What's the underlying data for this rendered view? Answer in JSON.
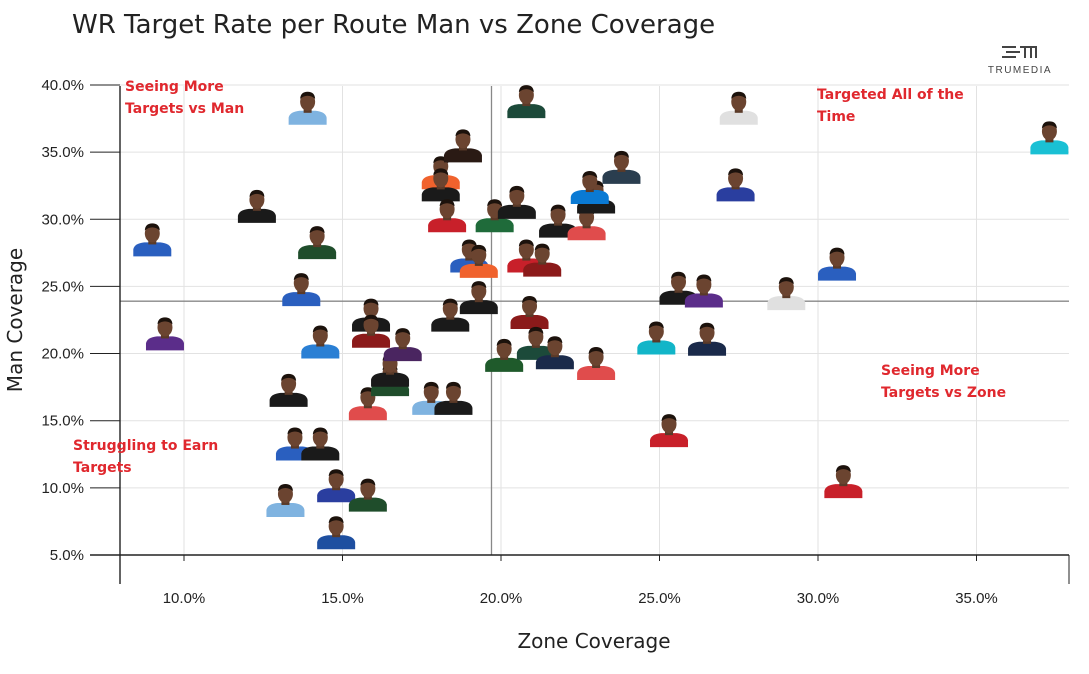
{
  "title": "WR Target Rate per Route Man vs Zone Coverage",
  "brand": "TRUMEDIA",
  "colors": {
    "annotation": "#e0282e",
    "grid": "#e2e2e2",
    "axis": "#222222",
    "reference": "#888888"
  },
  "quadrant_labels": {
    "top_left": [
      "Seeing More",
      "Targets vs Man"
    ],
    "top_right": [
      "Targeted All of the",
      "Time"
    ],
    "bottom_right": [
      "Seeing More",
      "Targets vs Zone"
    ],
    "bottom_left": [
      "Struggling to Earn",
      "Targets"
    ]
  },
  "chart_data": {
    "type": "scatter",
    "title": "WR Target Rate per Route Man vs Zone Coverage",
    "xlabel": "Zone Coverage",
    "ylabel": "Man Coverage",
    "xlim": [
      8.0,
      38.0
    ],
    "ylim": [
      5.0,
      40.0
    ],
    "xticks": [
      "10.0%",
      "15.0%",
      "20.0%",
      "25.0%",
      "30.0%",
      "35.0%"
    ],
    "xtick_values": [
      10,
      15,
      20,
      25,
      30,
      35
    ],
    "yticks": [
      "5.0%",
      "10.0%",
      "15.0%",
      "20.0%",
      "25.0%",
      "30.0%",
      "35.0%",
      "40.0%"
    ],
    "ytick_values": [
      5,
      10,
      15,
      20,
      25,
      30,
      35,
      40
    ],
    "grid": true,
    "reference_lines": {
      "x": 19.7,
      "y": 23.9
    },
    "marker": "player headshot",
    "points": [
      {
        "x": 9.0,
        "y": 28.2,
        "jersey": "#2a5fbf"
      },
      {
        "x": 9.4,
        "y": 21.2,
        "jersey": "#5b2d8a"
      },
      {
        "x": 12.3,
        "y": 30.7,
        "jersey": "#1a1a1a"
      },
      {
        "x": 13.3,
        "y": 17.0,
        "jersey": "#1a1a1a"
      },
      {
        "x": 13.2,
        "y": 8.8,
        "jersey": "#7fb3e0"
      },
      {
        "x": 13.5,
        "y": 13.0,
        "jersey": "#2a5fbf"
      },
      {
        "x": 13.7,
        "y": 24.5,
        "jersey": "#2a5fbf"
      },
      {
        "x": 13.9,
        "y": 38.0,
        "jersey": "#7fb3e0"
      },
      {
        "x": 14.2,
        "y": 28.0,
        "jersey": "#1f4d2b"
      },
      {
        "x": 14.3,
        "y": 13.0,
        "jersey": "#1a1a1a"
      },
      {
        "x": 14.3,
        "y": 20.6,
        "jersey": "#2a7fd4"
      },
      {
        "x": 14.8,
        "y": 9.9,
        "jersey": "#2a3e9f"
      },
      {
        "x": 14.8,
        "y": 6.4,
        "jersey": "#1e4fa0"
      },
      {
        "x": 15.8,
        "y": 9.2,
        "jersey": "#1f4d2b"
      },
      {
        "x": 15.9,
        "y": 22.6,
        "jersey": "#1a1a1a"
      },
      {
        "x": 15.9,
        "y": 21.4,
        "jersey": "#8b1a1a"
      },
      {
        "x": 15.8,
        "y": 16.0,
        "jersey": "#e04c4c"
      },
      {
        "x": 16.5,
        "y": 17.8,
        "jersey": "#1f4d2b"
      },
      {
        "x": 16.5,
        "y": 18.5,
        "jersey": "#1a1a1a"
      },
      {
        "x": 16.9,
        "y": 20.4,
        "jersey": "#4a2560"
      },
      {
        "x": 17.8,
        "y": 16.4,
        "jersey": "#7fb3e0"
      },
      {
        "x": 18.1,
        "y": 33.2,
        "jersey": "#f0622d"
      },
      {
        "x": 18.1,
        "y": 32.3,
        "jersey": "#1a1a1a"
      },
      {
        "x": 18.3,
        "y": 30.0,
        "jersey": "#c8202a"
      },
      {
        "x": 18.5,
        "y": 16.4,
        "jersey": "#1a1a1a"
      },
      {
        "x": 18.8,
        "y": 35.2,
        "jersey": "#2a1a14"
      },
      {
        "x": 18.4,
        "y": 22.6,
        "jersey": "#1a1a1a"
      },
      {
        "x": 19.3,
        "y": 23.9,
        "jersey": "#1a1a1a"
      },
      {
        "x": 19.0,
        "y": 27.0,
        "jersey": "#2a5fbf"
      },
      {
        "x": 19.3,
        "y": 26.6,
        "jersey": "#f0622d"
      },
      {
        "x": 19.8,
        "y": 30.0,
        "jersey": "#1f6b3a"
      },
      {
        "x": 20.1,
        "y": 19.6,
        "jersey": "#1f5a2b"
      },
      {
        "x": 20.5,
        "y": 31.0,
        "jersey": "#1a1a1a"
      },
      {
        "x": 20.8,
        "y": 38.5,
        "jersey": "#1c4a3a"
      },
      {
        "x": 20.8,
        "y": 27.0,
        "jersey": "#c8202a"
      },
      {
        "x": 20.9,
        "y": 22.8,
        "jersey": "#8b1a1a"
      },
      {
        "x": 21.1,
        "y": 20.5,
        "jersey": "#1c4a3a"
      },
      {
        "x": 21.3,
        "y": 26.7,
        "jersey": "#8b1a1a"
      },
      {
        "x": 21.7,
        "y": 19.8,
        "jersey": "#1a2a4a"
      },
      {
        "x": 21.8,
        "y": 29.6,
        "jersey": "#1a1a1a"
      },
      {
        "x": 22.7,
        "y": 29.4,
        "jersey": "#e04c4c"
      },
      {
        "x": 23.0,
        "y": 31.4,
        "jersey": "#1a1a1a"
      },
      {
        "x": 22.8,
        "y": 32.1,
        "jersey": "#0a7ad4"
      },
      {
        "x": 23.8,
        "y": 33.6,
        "jersey": "#2a3e4f"
      },
      {
        "x": 23.0,
        "y": 19.0,
        "jersey": "#e04c4c"
      },
      {
        "x": 24.9,
        "y": 20.9,
        "jersey": "#12b5c8"
      },
      {
        "x": 25.3,
        "y": 14.0,
        "jersey": "#c8202a"
      },
      {
        "x": 25.6,
        "y": 24.6,
        "jersey": "#1a1a1a"
      },
      {
        "x": 26.4,
        "y": 24.4,
        "jersey": "#5b2d8a"
      },
      {
        "x": 26.5,
        "y": 20.8,
        "jersey": "#1a2a4a"
      },
      {
        "x": 27.5,
        "y": 38.0,
        "jersey": "#e0e0e0"
      },
      {
        "x": 27.4,
        "y": 32.3,
        "jersey": "#2a3e9f"
      },
      {
        "x": 29.0,
        "y": 24.2,
        "jersey": "#e0e0e0"
      },
      {
        "x": 30.6,
        "y": 26.4,
        "jersey": "#2a5fbf"
      },
      {
        "x": 30.8,
        "y": 10.2,
        "jersey": "#c8202a"
      },
      {
        "x": 37.3,
        "y": 35.8,
        "jersey": "#1ac0d4"
      }
    ]
  }
}
